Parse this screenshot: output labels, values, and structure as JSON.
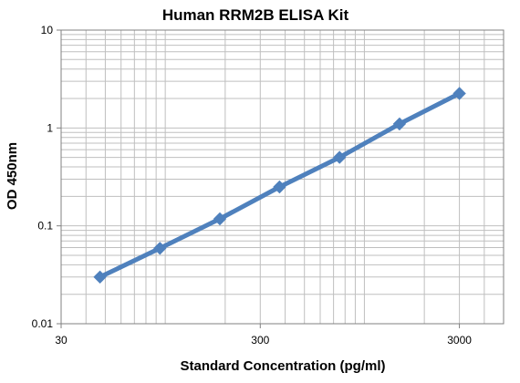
{
  "chart_data": {
    "type": "line",
    "title": "Human RRM2B ELISA Kit",
    "xlabel": "Standard Concentration (pg/ml)",
    "ylabel": "OD 450nm",
    "xscale": "log",
    "yscale": "log",
    "xlim": [
      30,
      5000
    ],
    "ylim": [
      0.01,
      10
    ],
    "x_ticks": [
      "30",
      "300",
      "3000"
    ],
    "y_ticks": [
      "10",
      "1",
      "0.1",
      "0.01"
    ],
    "grid": true,
    "legend": "none",
    "series": [
      {
        "x": [
          47,
          94,
          188,
          375,
          750,
          1500,
          3000
        ],
        "y": [
          0.03,
          0.059,
          0.118,
          0.25,
          0.5,
          1.1,
          2.25
        ]
      }
    ],
    "colors": {
      "line": "#4f81bd",
      "marker": "#4f81bd",
      "grid": "#bfbfbf",
      "axis": "#808080"
    },
    "marker": "diamond"
  }
}
